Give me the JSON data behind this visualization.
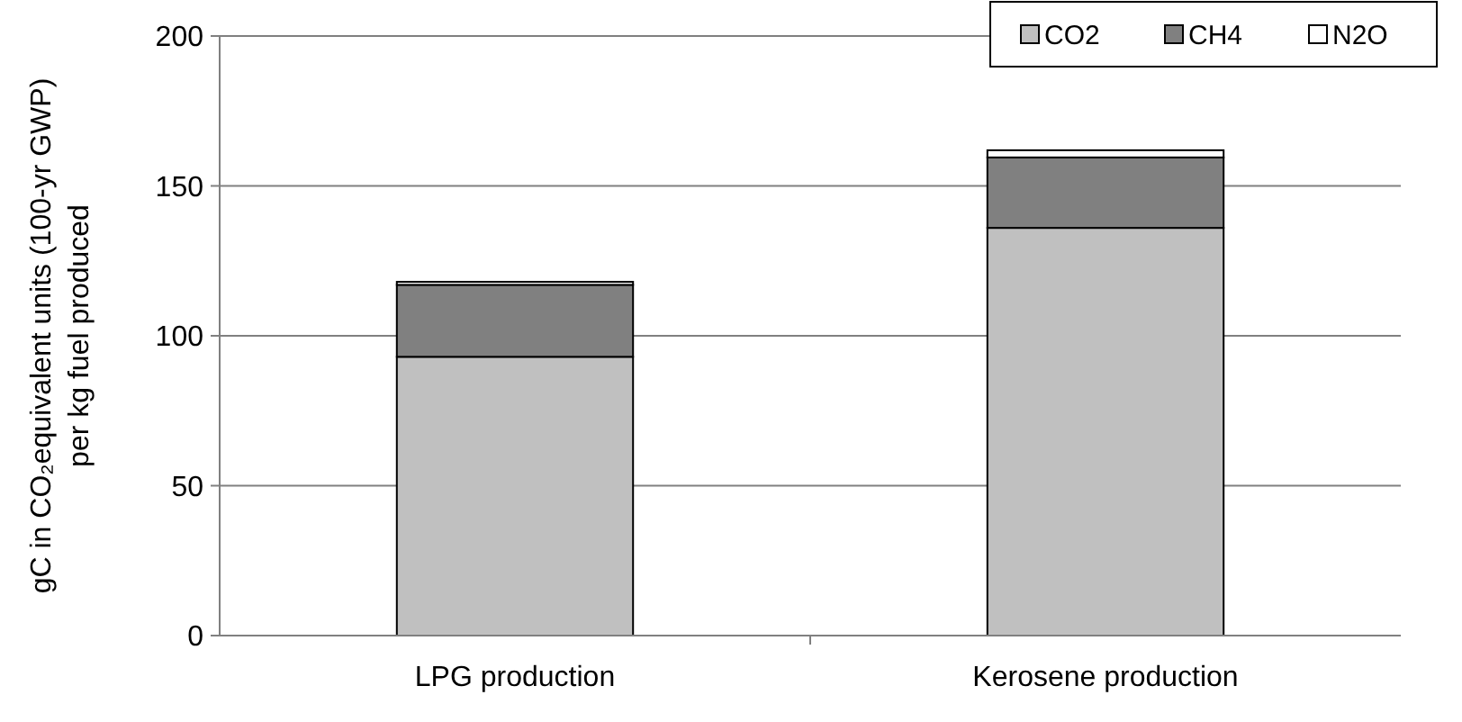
{
  "chart_data": {
    "type": "bar",
    "stacked": true,
    "categories": [
      "LPG production",
      "Kerosene production"
    ],
    "series": [
      {
        "name": "CO2",
        "color": "#c0c0c0",
        "values": [
          93,
          136
        ]
      },
      {
        "name": "CH4",
        "color": "#808080",
        "values": [
          24,
          23.5
        ]
      },
      {
        "name": "N2O",
        "color": "#ffffff",
        "values": [
          1,
          2.4
        ]
      }
    ],
    "ylabel": "gC in CO₂equivalent units (100-yr GWP)\nper kg fuel produced",
    "ylim": [
      0,
      200
    ],
    "yticks": [
      0,
      50,
      100,
      150,
      200
    ],
    "grid": "y",
    "legend": "top right"
  }
}
